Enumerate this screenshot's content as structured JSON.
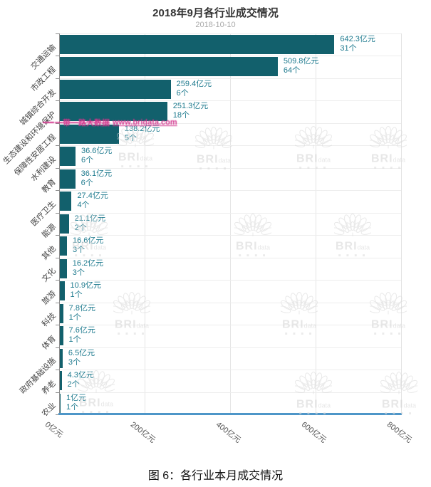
{
  "title": "2018年9月各行业成交情况",
  "subtitle": "2018-10-10",
  "caption": "图 6：各行业本月成交情况",
  "watermark": {
    "brand": "BRI",
    "brand_sub": "data",
    "sub_blocks": "■ ■ ■ ■",
    "banner_prefix": "一带一路大数据",
    "banner_url": "www.bridata.com",
    "banner_color": "#d2358d"
  },
  "colors": {
    "bar": "#12606c",
    "value_label": "#1e7a8e",
    "x_axis_line": "#4e96c8",
    "y_axis_line": "#8c8c8c",
    "gridline": "#e4e4e4",
    "title": "#333333",
    "subtitle": "#aaaaaa",
    "watermark_gray": "#d8d8d8"
  },
  "chart_data": {
    "type": "bar",
    "orientation": "horizontal",
    "title": "2018年9月各行业成交情况",
    "subtitle": "2018-10-10",
    "categories": [
      "交通运输",
      "市政工程",
      "城镇综合开发",
      "生态建设和环境保护",
      "保障性安居工程",
      "水利建设",
      "教育",
      "医疗卫生",
      "能源",
      "其他",
      "文化",
      "旅游",
      "科技",
      "体育",
      "政府基础设施",
      "养老",
      "农业"
    ],
    "series": [
      {
        "name": "成交金额",
        "unit": "亿元",
        "values": [
          642.3,
          509.8,
          259.4,
          251.3,
          138.2,
          36.6,
          36.1,
          27.4,
          21.1,
          16.6,
          16.2,
          10.9,
          7.8,
          7.6,
          6.5,
          4.3,
          1
        ]
      },
      {
        "name": "成交项目数",
        "unit": "个",
        "values": [
          31,
          64,
          6,
          18,
          5,
          6,
          6,
          4,
          2,
          3,
          3,
          1,
          1,
          1,
          3,
          2,
          1
        ]
      }
    ],
    "unit_amount": "亿元",
    "unit_count": "个",
    "xlabel": "",
    "ylabel": "",
    "xlim": [
      0,
      800
    ],
    "x_tick_values": [
      0,
      200,
      400,
      600,
      800
    ],
    "x_tick_labels": [
      "0亿元",
      "200亿元",
      "400亿元",
      "600亿元",
      "800亿元"
    ],
    "grid": true,
    "legend": false,
    "bar_color": "#12606c"
  }
}
